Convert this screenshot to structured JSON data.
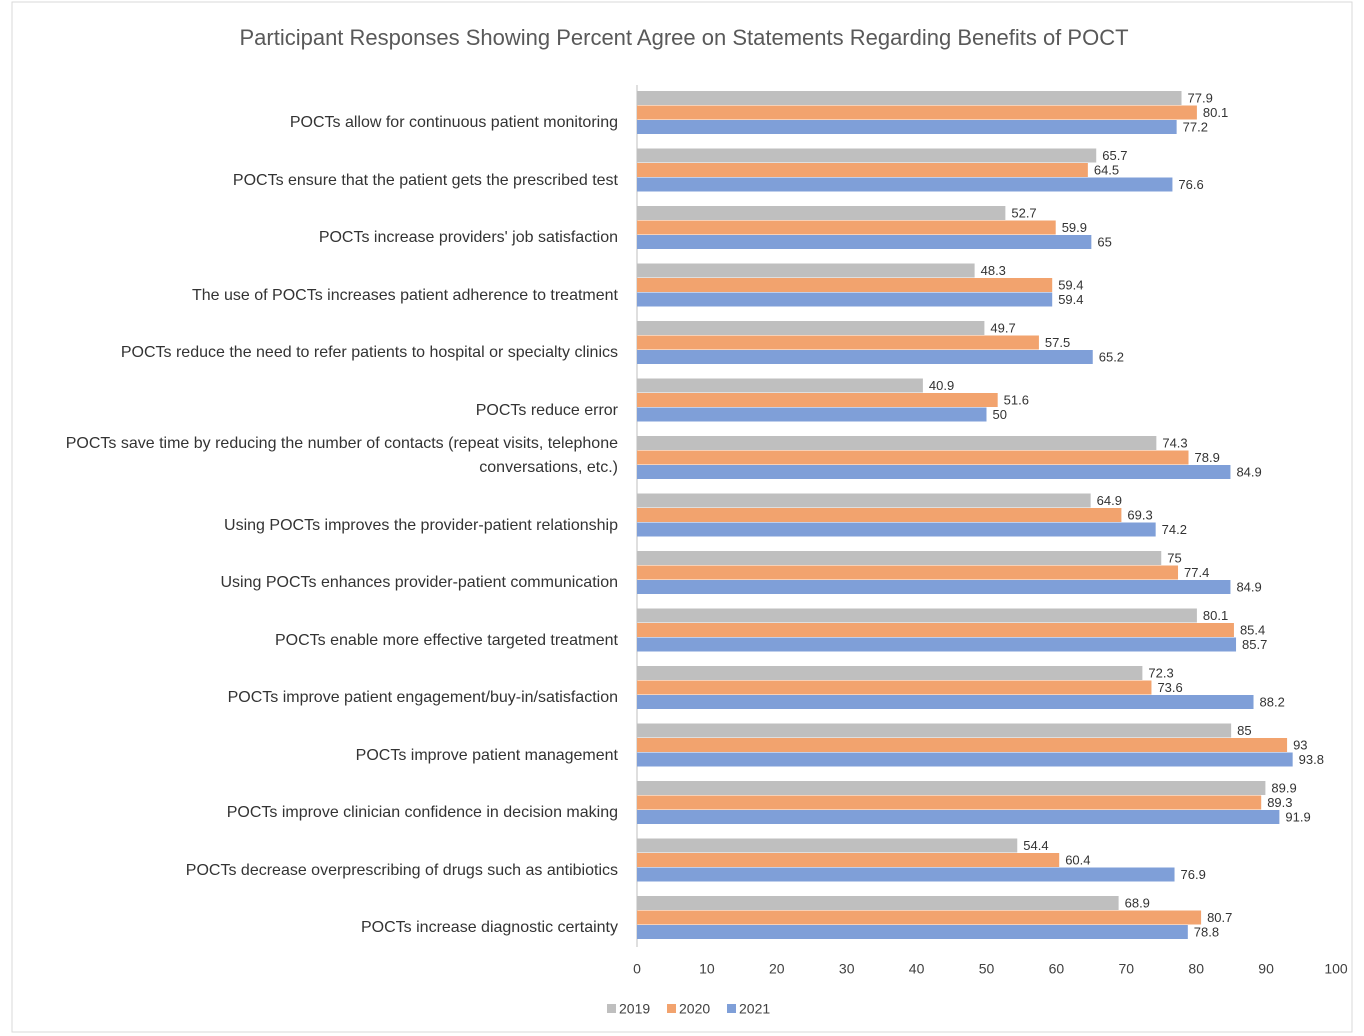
{
  "chart_data": {
    "type": "hbar",
    "title": "Participant Responses Showing Percent Agree on Statements Regarding Benefits of POCT",
    "categories": [
      "POCTs allow for continuous patient monitoring",
      "POCTs ensure that the patient gets the prescribed test",
      "POCTs increase providers' job satisfaction",
      "The use of POCTs increases patient adherence to treatment",
      "POCTs reduce the need to refer patients to hospital or specialty clinics",
      "POCTs reduce error",
      "POCTs save time by reducing the number of contacts (repeat visits, telephone conversations, etc.)",
      "Using POCTs improves the provider-patient relationship",
      "Using POCTs enhances provider-patient communication",
      "POCTs enable more effective targeted treatment",
      "POCTs improve patient engagement/buy-in/satisfaction",
      "POCTs improve patient management",
      "POCTs improve clinician confidence in decision making",
      "POCTs decrease overprescribing of drugs such as antibiotics",
      "POCTs increase diagnostic certainty"
    ],
    "series": [
      {
        "name": "2019",
        "color": "#bfbfbf",
        "values": [
          77.9,
          65.7,
          52.7,
          48.3,
          49.7,
          40.9,
          74.3,
          64.9,
          75,
          80.1,
          72.3,
          85,
          89.9,
          54.4,
          68.9
        ]
      },
      {
        "name": "2020",
        "color": "#f2a36e",
        "values": [
          80.1,
          64.5,
          59.9,
          59.4,
          57.5,
          51.6,
          78.9,
          69.3,
          77.4,
          85.4,
          73.6,
          93,
          89.3,
          60.4,
          80.7
        ]
      },
      {
        "name": "2021",
        "color": "#7f9fd8",
        "values": [
          77.2,
          76.6,
          65,
          59.4,
          65.2,
          50,
          84.9,
          74.2,
          84.9,
          85.7,
          88.2,
          93.8,
          91.9,
          76.9,
          78.8
        ]
      }
    ],
    "xlim": [
      0,
      100
    ],
    "xticks": [
      0,
      10,
      20,
      30,
      40,
      50,
      60,
      70,
      80,
      90,
      100
    ],
    "legend": "bottom"
  }
}
